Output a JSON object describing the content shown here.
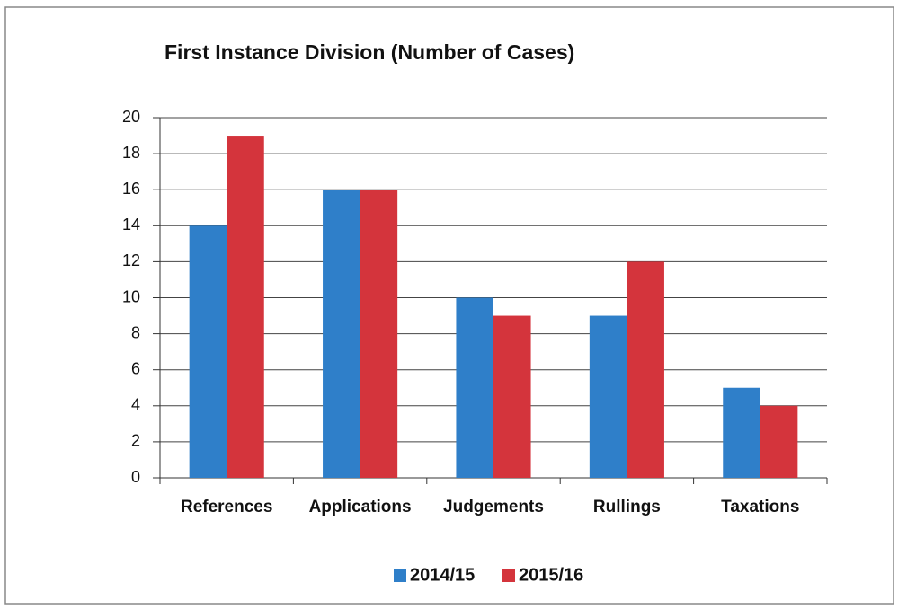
{
  "chart_data": {
    "type": "bar",
    "title": "First Instance Division (Number of Cases)",
    "categories": [
      "References",
      "Applications",
      "Judgements",
      "Rullings",
      "Taxations"
    ],
    "series": [
      {
        "name": "2014/15",
        "color": "#2f7fc9",
        "values": [
          14,
          16,
          10,
          9,
          5
        ]
      },
      {
        "name": "2015/16",
        "color": "#d4343c",
        "values": [
          19,
          16,
          9,
          12,
          4
        ]
      }
    ],
    "ylim": [
      0,
      20
    ],
    "yticks": [
      0,
      2,
      4,
      6,
      8,
      10,
      12,
      14,
      16,
      18,
      20
    ],
    "grid": true,
    "legend": "bottom"
  }
}
